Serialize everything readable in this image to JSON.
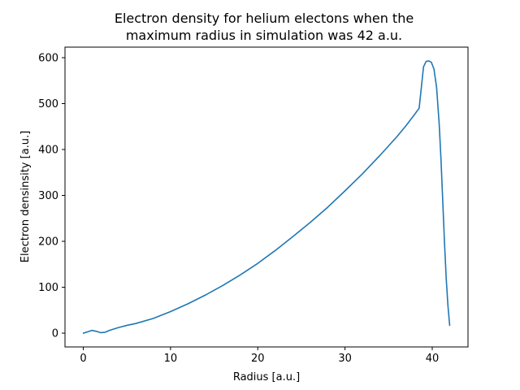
{
  "chart_data": {
    "type": "line",
    "title_lines": [
      "Electron density for helium electons when the",
      "maximum radius in simulation was 42 a.u."
    ],
    "xlabel": "Radius [a.u.]",
    "ylabel": "Electron densinsity [a.u.]",
    "xlim": [
      -2.1,
      44.1
    ],
    "ylim": [
      -30,
      623
    ],
    "xticks": [
      0,
      10,
      20,
      30,
      40
    ],
    "yticks": [
      0,
      100,
      200,
      300,
      400,
      500,
      600
    ],
    "grid": false,
    "legend": "none",
    "series": [
      {
        "color": "#1f77b4",
        "x": [
          0,
          0.5,
          1,
          1.5,
          2,
          2.5,
          3,
          4,
          5,
          6,
          8,
          10,
          12,
          14,
          16,
          18,
          20,
          22,
          24,
          26,
          28,
          30,
          32,
          34,
          36,
          37,
          38,
          38.5,
          39,
          39.3,
          39.6,
          39.9,
          40.2,
          40.5,
          40.8,
          41,
          41.2,
          41.4,
          41.6,
          41.8,
          42
        ],
        "y": [
          0,
          3,
          6,
          4,
          1,
          2,
          6,
          12,
          17,
          21,
          32,
          47,
          64,
          83,
          104,
          127,
          152,
          180,
          210,
          241,
          274,
          310,
          347,
          387,
          429,
          452,
          477,
          490,
          580,
          592,
          593,
          590,
          575,
          535,
          455,
          380,
          290,
          200,
          120,
          60,
          17
        ]
      }
    ]
  }
}
